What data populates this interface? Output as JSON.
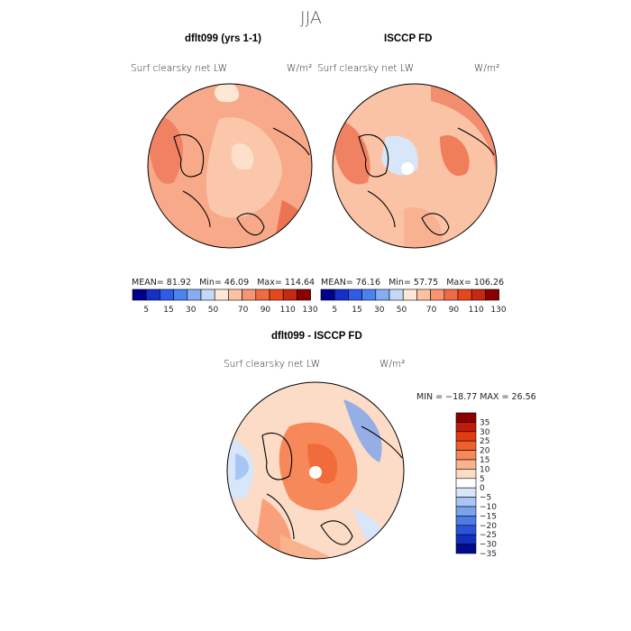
{
  "season": "JJA",
  "panels": [
    {
      "title": "dflt099 (yrs 1-1)",
      "variable": "Surf clearsky net LW",
      "units": "W/m²",
      "stats": {
        "mean_label": "MEAN=",
        "mean": "81.92",
        "min_label": "Min=",
        "min": "46.09",
        "max_label": "Max=",
        "max": "114.64"
      }
    },
    {
      "title": "ISCCP FD",
      "variable": "Surf clearsky net LW",
      "units": "W/m²",
      "stats": {
        "mean_label": "MEAN=",
        "mean": "76.16",
        "min_label": "Min=",
        "min": "57.75",
        "max_label": "Max=",
        "max": "106.26"
      }
    },
    {
      "title": "dflt099 - ISCCP FD",
      "variable": "Surf clearsky net LW",
      "units": "W/m²",
      "stats": {
        "text": "MIN = −18.77  MAX =  26.56"
      }
    }
  ],
  "colors": {
    "abs_scale": [
      "#00008b",
      "#1530c8",
      "#2e5ce8",
      "#4a82f0",
      "#86adf2",
      "#c3d9f7",
      "#fde8d6",
      "#fbc2a4",
      "#f99573",
      "#f06a43",
      "#e8461d",
      "#c62810",
      "#8b0000"
    ],
    "diff_scale": [
      "#8b0000",
      "#c41a0a",
      "#e33a14",
      "#f0602d",
      "#f7885a",
      "#fab28e",
      "#fcdcc6",
      "#ffffff",
      "#d8e6fa",
      "#a8c6f5",
      "#7aa3ee",
      "#4e7ce6",
      "#2a53d9",
      "#1230c0",
      "#000b8b"
    ],
    "land_line": "#000000"
  },
  "chart_data": [
    {
      "type": "heatmap",
      "projection": "north-polar stereographic",
      "title": "dflt099 (yrs 1-1)",
      "variable": "Surf clearsky net LW",
      "units": "W/m2",
      "colorbar_ticks": [
        "5",
        "15",
        "30",
        "50",
        "70",
        "90",
        "110",
        "130"
      ],
      "mean": 81.92,
      "min": 46.09,
      "max": 114.64
    },
    {
      "type": "heatmap",
      "projection": "north-polar stereographic",
      "title": "ISCCP FD",
      "variable": "Surf clearsky net LW",
      "units": "W/m2",
      "colorbar_ticks": [
        "5",
        "15",
        "30",
        "50",
        "70",
        "90",
        "110",
        "130"
      ],
      "mean": 76.16,
      "min": 57.75,
      "max": 106.26
    },
    {
      "type": "heatmap",
      "projection": "north-polar stereographic",
      "title": "dflt099 - ISCCP FD",
      "variable": "Surf clearsky net LW",
      "units": "W/m2",
      "colorbar_ticks": [
        "35",
        "30",
        "25",
        "20",
        "15",
        "10",
        "5",
        "0",
        "−5",
        "−10",
        "−15",
        "−20",
        "−25",
        "−30",
        "−35"
      ],
      "min": -18.77,
      "max": 26.56
    }
  ]
}
